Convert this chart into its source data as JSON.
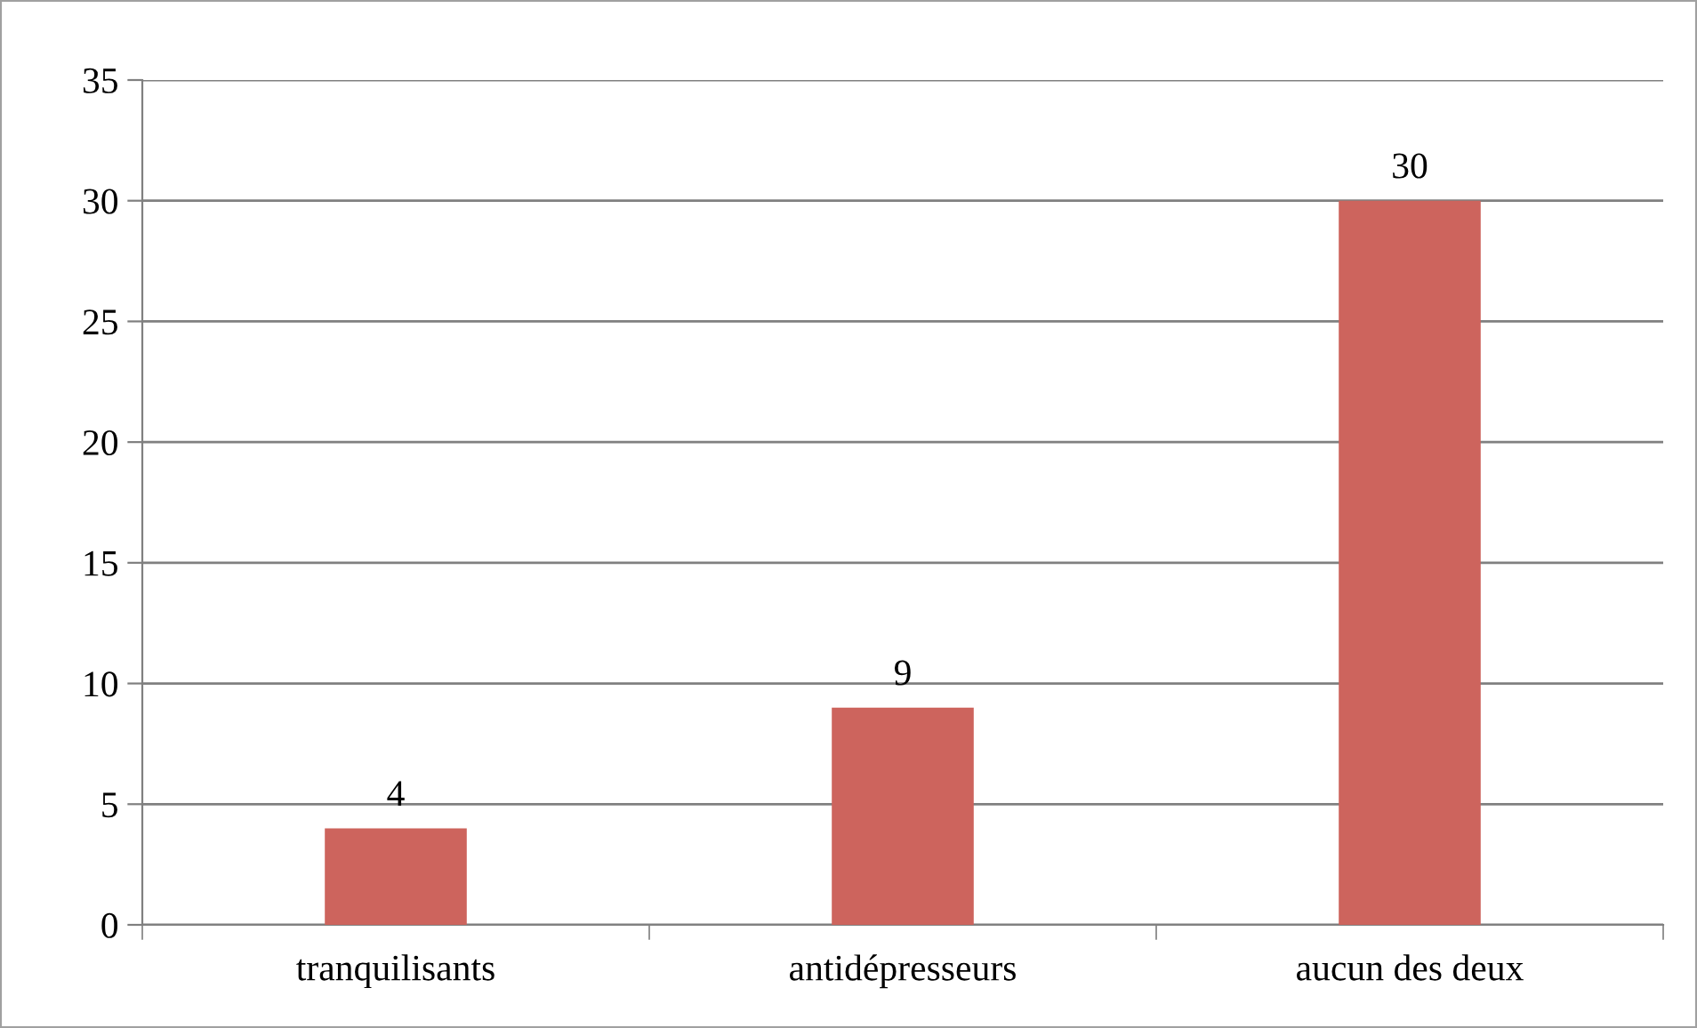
{
  "chart_data": {
    "type": "bar",
    "categories": [
      "tranquilisants",
      "antidépresseurs",
      "aucun des deux"
    ],
    "values": [
      4,
      9,
      30
    ],
    "color": "#cd645d",
    "ylim": [
      0,
      35
    ],
    "yticks": [
      0,
      5,
      10,
      15,
      20,
      25,
      30,
      35
    ],
    "grid": "y",
    "data_labels": true
  }
}
